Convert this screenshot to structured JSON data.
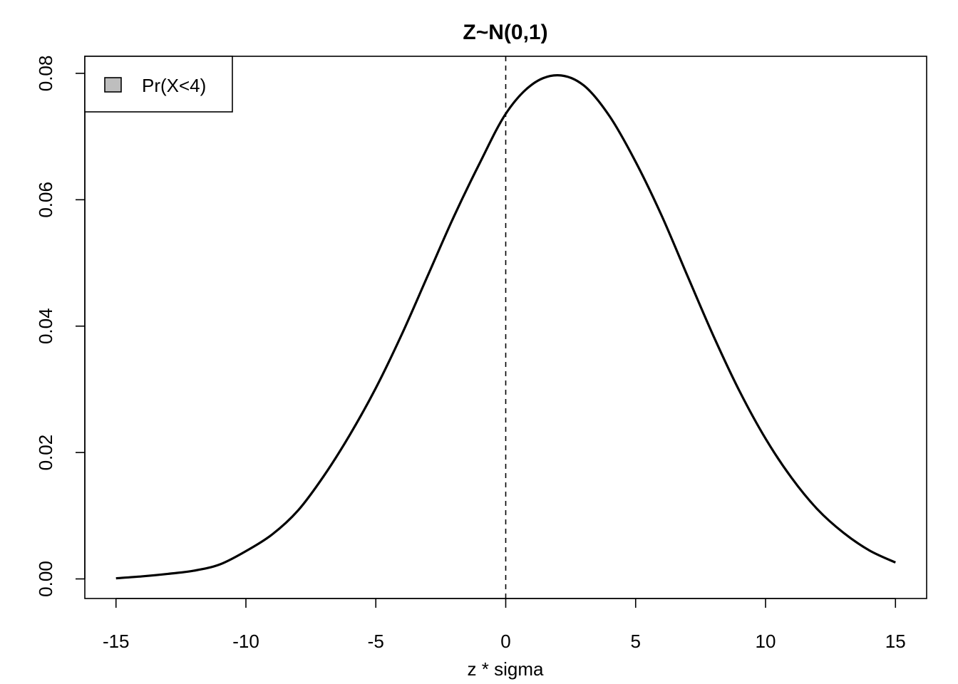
{
  "chart_data": {
    "type": "line",
    "title": "Z~N(0,1)",
    "xlabel": "z * sigma",
    "ylabel": "",
    "xlim": [
      -16.2,
      16.2
    ],
    "ylim": [
      -0.0031,
      0.0827
    ],
    "x_ticks": [
      -15,
      -10,
      -5,
      0,
      5,
      10,
      15
    ],
    "x_tick_labels": [
      "-15",
      "-10",
      "-5",
      "0",
      "5",
      "10",
      "15"
    ],
    "y_ticks": [
      0.0,
      0.02,
      0.04,
      0.06,
      0.08
    ],
    "y_tick_labels": [
      "0.00",
      "0.02",
      "0.04",
      "0.06",
      "0.08"
    ],
    "grid": false,
    "legend": {
      "position": "top-left",
      "entries": [
        {
          "label": "Pr(X<4)",
          "fill": "#bebebe"
        }
      ]
    },
    "reference_line": {
      "x": 0,
      "style": "dashed"
    },
    "series": [
      {
        "color": "#000000",
        "x": [
          -15,
          -14,
          -13,
          -12,
          -11,
          -10,
          -9,
          -8,
          -7,
          -6,
          -5,
          -4,
          -3,
          -2,
          -1,
          0,
          1,
          2,
          3,
          4,
          5,
          6,
          7,
          8,
          9,
          10,
          11,
          12,
          13,
          14,
          15
        ],
        "y": [
          0.0001,
          0.0004,
          0.0008,
          0.0013,
          0.0023,
          0.0044,
          0.007,
          0.0108,
          0.0163,
          0.0228,
          0.0302,
          0.0387,
          0.048,
          0.0573,
          0.0658,
          0.0736,
          0.0782,
          0.0797,
          0.0781,
          0.0732,
          0.066,
          0.0575,
          0.0479,
          0.0384,
          0.0297,
          0.0222,
          0.016,
          0.011,
          0.0073,
          0.0045,
          0.0026
        ]
      }
    ]
  }
}
